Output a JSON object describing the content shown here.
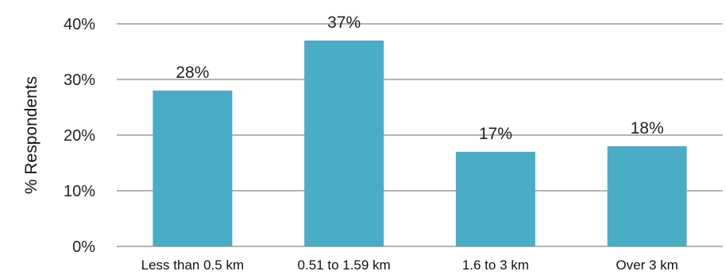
{
  "chart_data": {
    "type": "bar",
    "title": "",
    "xlabel": "",
    "ylabel": "% Respondents",
    "categories": [
      "Less than 0.5 km",
      "0.51 to 1.59 km",
      "1.6 to 3 km",
      "Over 3 km"
    ],
    "values": [
      28,
      37,
      17,
      18
    ],
    "data_labels": [
      "28%",
      "37%",
      "17%",
      "18%"
    ],
    "ylim": [
      0,
      40
    ],
    "yticks": [
      0,
      10,
      20,
      30,
      40
    ],
    "ytick_labels": [
      "0%",
      "10%",
      "20%",
      "30%",
      "40%"
    ],
    "grid": true,
    "legend": "none",
    "bar_color": "#4bacc6",
    "grid_color": "#888888"
  }
}
